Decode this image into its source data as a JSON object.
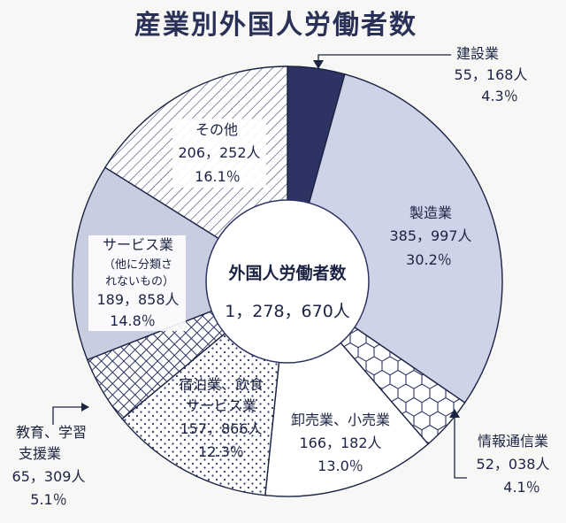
{
  "chart_data": {
    "type": "pie",
    "title": "産業別外国人労働者数",
    "center": {
      "label": "外国人労働者数",
      "value": "1，278，670人"
    },
    "slices": [
      {
        "name": "建設業",
        "count": "55，168人",
        "percent": "4.3％",
        "value": 4.3,
        "fill": "#2d3362"
      },
      {
        "name": "製造業",
        "count": "385，997人",
        "percent": "30.2％",
        "value": 30.2,
        "fill": "#cfd3e8"
      },
      {
        "name": "情報通信業",
        "count": "52，038人",
        "percent": "4.1％",
        "value": 4.1,
        "fill": "hexagon"
      },
      {
        "name": "卸売業、小売業",
        "count": "166，182人",
        "percent": "13.0％",
        "value": 13.0,
        "fill": "#ffffff"
      },
      {
        "name": "宿泊業、飲食サービス業",
        "count": "157，866人",
        "percent": "12.3％",
        "value": 12.3,
        "fill": "dots"
      },
      {
        "name": "教育、学習支援業",
        "count": "65，309人",
        "percent": "5.1％",
        "value": 5.1,
        "fill": "crosshatch"
      },
      {
        "name": "サービス業（他に分類されないもの）",
        "count": "189，858人",
        "percent": "14.8％",
        "value": 14.8,
        "fill": "#c9cde0"
      },
      {
        "name": "その他",
        "count": "206，252人",
        "percent": "16.1％",
        "value": 16.1,
        "fill": "diagonal"
      }
    ],
    "labels": {
      "kensetsu": [
        "建設業",
        "55，168人",
        "4.3％"
      ],
      "seizo": [
        "製造業",
        "385，997人",
        "30.2％"
      ],
      "joho": [
        "情報通信業",
        "52，038人",
        "4.1％"
      ],
      "oroshi": [
        "卸売業、小売業",
        "166，182人",
        "13.0％"
      ],
      "shukuhaku": [
        "宿泊業、飲食",
        "サービス業",
        "157，866人",
        "12.3％"
      ],
      "kyoiku": [
        "教育、学習",
        "支援業",
        "65，309人",
        "5.1％"
      ],
      "service": [
        "サービス業",
        "（他に分類さ",
        "れないもの）",
        "189，858人",
        "14.8％"
      ],
      "sonota": [
        "その他",
        "206，252人",
        "16.1％"
      ]
    }
  }
}
